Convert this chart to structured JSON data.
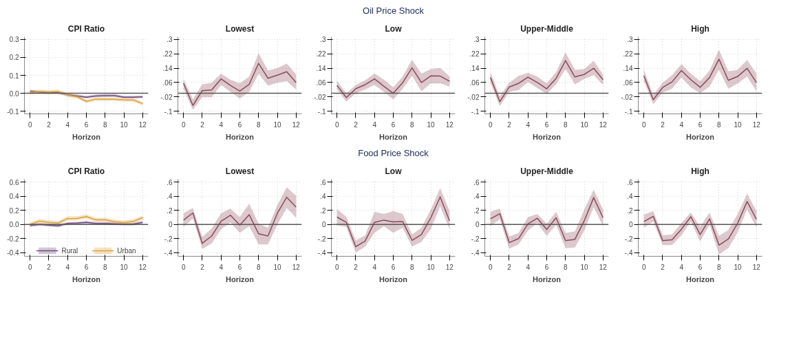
{
  "chart_data": [
    {
      "type": "line",
      "title": "CPI Ratio",
      "xlabel": "Horizon",
      "x": [
        0,
        1,
        2,
        3,
        4,
        5,
        6,
        7,
        8,
        9,
        10,
        11,
        12
      ],
      "xlim": [
        -0.6,
        12.6
      ],
      "xticks": [
        0,
        2,
        4,
        6,
        8,
        10,
        12
      ],
      "ylim": [
        -0.115,
        0.315
      ],
      "yticks": [
        {
          "value": 0.3,
          "label": "0.3"
        },
        {
          "value": 0.2,
          "label": "0.2"
        },
        {
          "value": 0.1,
          "label": "0.1"
        },
        {
          "value": 0,
          "label": "0.0"
        },
        {
          "value": -0.1,
          "label": "-0.1"
        }
      ],
      "grid": true,
      "legend": false,
      "ref_lines": [
        {
          "axis": "y",
          "value": 0,
          "color": "#555555"
        }
      ],
      "series": [
        {
          "color": "#6e4a7e",
          "values": [
            0.012,
            0.006,
            0.004,
            0.004,
            -0.008,
            -0.015,
            -0.022,
            -0.015,
            -0.013,
            -0.013,
            -0.022,
            -0.022,
            -0.02
          ],
          "lower": [
            0.004,
            -0.002,
            -0.004,
            -0.004,
            -0.016,
            -0.023,
            -0.03,
            -0.023,
            -0.021,
            -0.021,
            -0.03,
            -0.03,
            -0.028
          ],
          "upper": [
            0.02,
            0.014,
            0.012,
            0.012,
            0.0,
            -0.007,
            -0.014,
            -0.007,
            -0.005,
            -0.005,
            -0.014,
            -0.014,
            -0.012
          ]
        },
        {
          "color": "#d9a13b",
          "values": [
            0.003,
            0.01,
            0.007,
            0.01,
            -0.01,
            -0.02,
            -0.045,
            -0.033,
            -0.033,
            -0.033,
            -0.037,
            -0.037,
            -0.058
          ],
          "lower": [
            -0.007,
            0.0,
            -0.003,
            0.0,
            -0.02,
            -0.03,
            -0.055,
            -0.043,
            -0.043,
            -0.043,
            -0.047,
            -0.047,
            -0.068
          ],
          "upper": [
            0.013,
            0.02,
            0.017,
            0.02,
            0.0,
            -0.01,
            -0.035,
            -0.023,
            -0.023,
            -0.023,
            -0.027,
            -0.027,
            -0.048
          ]
        }
      ]
    },
    {
      "type": "line",
      "title": "Lowest",
      "xlabel": "Horizon",
      "x": [
        0,
        1,
        2,
        3,
        4,
        5,
        6,
        7,
        8,
        9,
        10,
        11,
        12
      ],
      "xlim": [
        -0.6,
        12.6
      ],
      "xticks": [
        0,
        2,
        4,
        6,
        8,
        10,
        12
      ],
      "ylim": [
        -0.115,
        0.315
      ],
      "yticks": [
        {
          "value": 0.3,
          "label": ".3"
        },
        {
          "value": 0.22,
          "label": ".22"
        },
        {
          "value": 0.14,
          "label": ".14"
        },
        {
          "value": 0.06,
          "label": ".06"
        },
        {
          "value": -0.02,
          "label": "-.02"
        },
        {
          "value": -0.1,
          "label": "-.1"
        }
      ],
      "grid": true,
      "ref_lines": [
        {
          "axis": "y",
          "value": 0,
          "color": "#555555"
        }
      ],
      "series": [
        {
          "color": "#8b4a5a",
          "values": [
            0.056,
            -0.068,
            0.015,
            0.018,
            0.08,
            0.044,
            0.012,
            0.05,
            0.167,
            0.084,
            0.101,
            0.12,
            0.06
          ],
          "lower": [
            0.025,
            -0.093,
            -0.021,
            -0.023,
            0.046,
            0.008,
            -0.03,
            0.008,
            0.11,
            0.042,
            0.059,
            0.067,
            0.021
          ],
          "upper": [
            0.08,
            -0.034,
            0.05,
            0.059,
            0.11,
            0.076,
            0.055,
            0.093,
            0.224,
            0.127,
            0.14,
            0.166,
            0.105
          ]
        }
      ]
    },
    {
      "type": "line",
      "subtitle": "Oil Price Shock",
      "title": "Low",
      "xlabel": "Horizon",
      "x": [
        0,
        1,
        2,
        3,
        4,
        5,
        6,
        7,
        8,
        9,
        10,
        11,
        12
      ],
      "xlim": [
        -0.6,
        12.6
      ],
      "xticks": [
        0,
        2,
        4,
        6,
        8,
        10,
        12
      ],
      "ylim": [
        -0.115,
        0.315
      ],
      "yticks": [
        {
          "value": 0.3,
          "label": ".3"
        },
        {
          "value": 0.22,
          "label": ".22"
        },
        {
          "value": 0.14,
          "label": ".14"
        },
        {
          "value": 0.06,
          "label": ".06"
        },
        {
          "value": -0.02,
          "label": "-.02"
        },
        {
          "value": -0.1,
          "label": "-.1"
        }
      ],
      "grid": true,
      "ref_lines": [
        {
          "axis": "y",
          "value": 0,
          "color": "#555555"
        }
      ],
      "series": [
        {
          "color": "#8b4a5a",
          "values": [
            0.044,
            -0.024,
            0.025,
            0.048,
            0.08,
            0.039,
            0.0,
            0.059,
            0.142,
            0.06,
            0.097,
            0.096,
            0.067
          ],
          "lower": [
            0.021,
            -0.047,
            0.0,
            0.021,
            0.046,
            0.008,
            -0.034,
            0.025,
            0.097,
            0.012,
            0.055,
            0.055,
            0.038
          ],
          "upper": [
            0.069,
            0.0,
            0.046,
            0.072,
            0.111,
            0.076,
            0.033,
            0.093,
            0.187,
            0.11,
            0.135,
            0.142,
            0.093
          ]
        }
      ]
    },
    {
      "type": "line",
      "title": "Upper-Middle",
      "xlabel": "Horizon",
      "x": [
        0,
        1,
        2,
        3,
        4,
        5,
        6,
        7,
        8,
        9,
        10,
        11,
        12
      ],
      "xlim": [
        -0.6,
        12.6
      ],
      "xticks": [
        0,
        2,
        4,
        6,
        8,
        10,
        12
      ],
      "ylim": [
        -0.115,
        0.315
      ],
      "yticks": [
        {
          "value": 0.3,
          "label": ".3"
        },
        {
          "value": 0.22,
          "label": ".22"
        },
        {
          "value": 0.14,
          "label": ".14"
        },
        {
          "value": 0.06,
          "label": ".06"
        },
        {
          "value": -0.02,
          "label": "-.02"
        },
        {
          "value": -0.1,
          "label": "-.1"
        }
      ],
      "grid": true,
      "ref_lines": [
        {
          "axis": "y",
          "value": 0,
          "color": "#555555"
        }
      ],
      "series": [
        {
          "color": "#8b4a5a",
          "values": [
            0.088,
            -0.047,
            0.035,
            0.055,
            0.09,
            0.06,
            0.025,
            0.083,
            0.182,
            0.091,
            0.105,
            0.139,
            0.076
          ],
          "lower": [
            0.059,
            -0.072,
            0.008,
            0.017,
            0.063,
            0.029,
            -0.004,
            0.05,
            0.135,
            0.05,
            0.08,
            0.101,
            0.046
          ],
          "upper": [
            0.118,
            -0.017,
            0.059,
            0.097,
            0.114,
            0.093,
            0.055,
            0.118,
            0.228,
            0.131,
            0.135,
            0.182,
            0.105
          ]
        }
      ]
    },
    {
      "type": "line",
      "title": "High",
      "xlabel": "Horizon",
      "x": [
        0,
        1,
        2,
        3,
        4,
        5,
        6,
        7,
        8,
        9,
        10,
        11,
        12
      ],
      "xlim": [
        -0.6,
        12.6
      ],
      "xticks": [
        0,
        2,
        4,
        6,
        8,
        10,
        12
      ],
      "ylim": [
        -0.115,
        0.315
      ],
      "yticks": [
        {
          "value": 0.3,
          "label": ".3"
        },
        {
          "value": 0.22,
          "label": ".22"
        },
        {
          "value": 0.14,
          "label": ".14"
        },
        {
          "value": 0.06,
          "label": ".06"
        },
        {
          "value": -0.02,
          "label": "-.02"
        },
        {
          "value": -0.1,
          "label": "-.1"
        }
      ],
      "grid": true,
      "ref_lines": [
        {
          "axis": "y",
          "value": 0,
          "color": "#555555"
        }
      ],
      "series": [
        {
          "color": "#8b4a5a",
          "values": [
            0.097,
            -0.036,
            0.032,
            0.063,
            0.127,
            0.076,
            0.033,
            0.088,
            0.19,
            0.072,
            0.094,
            0.139,
            0.06
          ],
          "lower": [
            0.067,
            -0.061,
            0.004,
            0.025,
            0.088,
            0.033,
            0.0,
            0.038,
            0.131,
            0.025,
            0.055,
            0.093,
            0.012
          ],
          "upper": [
            0.131,
            -0.009,
            0.059,
            0.101,
            0.162,
            0.11,
            0.067,
            0.127,
            0.243,
            0.122,
            0.131,
            0.186,
            0.11
          ]
        }
      ]
    },
    {
      "type": "line",
      "title": "CPI Ratio",
      "xlabel": "Horizon",
      "x": [
        0,
        1,
        2,
        3,
        4,
        5,
        6,
        7,
        8,
        9,
        10,
        11,
        12
      ],
      "xlim": [
        -0.6,
        12.6
      ],
      "xticks": [
        0,
        2,
        4,
        6,
        8,
        10,
        12
      ],
      "ylim": [
        -0.45,
        0.64
      ],
      "yticks": [
        {
          "value": 0.6,
          "label": "0.6"
        },
        {
          "value": 0.4,
          "label": "0.4"
        },
        {
          "value": 0.2,
          "label": "0.2"
        },
        {
          "value": 0,
          "label": "0.0"
        },
        {
          "value": -0.2,
          "label": "-0.2"
        },
        {
          "value": -0.4,
          "label": "-0.4"
        }
      ],
      "grid": true,
      "legend": "bottom",
      "ref_lines": [
        {
          "axis": "y",
          "value": 0,
          "color": "#555555"
        }
      ],
      "series": [
        {
          "name": "Rural",
          "color": "#6e4a7e",
          "values": [
            -0.015,
            0.0,
            -0.01,
            -0.02,
            0.015,
            0.02,
            0.03,
            0.015,
            0.015,
            0.01,
            0.005,
            0.005,
            0.03
          ],
          "lower": [
            -0.035,
            -0.02,
            -0.03,
            -0.04,
            -0.005,
            0.0,
            0.01,
            -0.005,
            -0.005,
            -0.01,
            -0.015,
            -0.015,
            0.01
          ],
          "upper": [
            0.005,
            0.02,
            0.01,
            0.0,
            0.035,
            0.04,
            0.05,
            0.035,
            0.035,
            0.03,
            0.025,
            0.025,
            0.05
          ]
        },
        {
          "name": "Urban",
          "color": "#d9a13b",
          "values": [
            0.0,
            0.047,
            0.03,
            0.02,
            0.084,
            0.086,
            0.112,
            0.065,
            0.065,
            0.04,
            0.026,
            0.043,
            0.097
          ],
          "lower": [
            -0.03,
            0.017,
            0.0,
            -0.01,
            0.054,
            0.056,
            0.082,
            0.035,
            0.035,
            0.01,
            -0.004,
            0.013,
            0.067
          ],
          "upper": [
            0.03,
            0.077,
            0.06,
            0.05,
            0.114,
            0.116,
            0.142,
            0.095,
            0.095,
            0.07,
            0.056,
            0.073,
            0.127
          ]
        }
      ]
    },
    {
      "type": "line",
      "title": "Lowest",
      "xlabel": "Horizon",
      "x": [
        0,
        1,
        2,
        3,
        4,
        5,
        6,
        7,
        8,
        9,
        10,
        11,
        12
      ],
      "xlim": [
        -0.6,
        12.6
      ],
      "xticks": [
        0,
        2,
        4,
        6,
        8,
        10,
        12
      ],
      "ylim": [
        -0.45,
        0.64
      ],
      "yticks": [
        {
          "value": 0.6,
          "label": ".6"
        },
        {
          "value": 0.4,
          "label": ".4"
        },
        {
          "value": 0.2,
          "label": ".2"
        },
        0,
        {
          "value": -0.2,
          "label": "-.2"
        },
        {
          "value": -0.4,
          "label": "-.4"
        }
      ],
      "grid": true,
      "ref_lines": [
        {
          "axis": "y",
          "value": 0,
          "color": "#555555"
        }
      ],
      "series": [
        {
          "color": "#8b4a5a",
          "values": [
            0.062,
            0.163,
            -0.267,
            -0.163,
            0.045,
            0.131,
            -0.009,
            0.138,
            -0.131,
            -0.163,
            0.159,
            0.385,
            0.245
          ],
          "lower": [
            -0.034,
            0.084,
            -0.346,
            -0.271,
            -0.067,
            0.03,
            -0.12,
            -0.024,
            -0.282,
            -0.282,
            -0.002,
            0.234,
            0.095
          ],
          "upper": [
            0.159,
            0.234,
            -0.174,
            -0.056,
            0.159,
            0.224,
            0.105,
            0.295,
            0.009,
            -0.045,
            0.277,
            0.525,
            0.406
          ]
        }
      ]
    },
    {
      "type": "line",
      "subtitle": "Food Price Shock",
      "title": "Low",
      "xlabel": "Horizon",
      "x": [
        0,
        1,
        2,
        3,
        4,
        5,
        6,
        7,
        8,
        9,
        10,
        11,
        12
      ],
      "xlim": [
        -0.6,
        12.6
      ],
      "xticks": [
        0,
        2,
        4,
        6,
        8,
        10,
        12
      ],
      "ylim": [
        -0.45,
        0.64
      ],
      "yticks": [
        {
          "value": 0.6,
          "label": ".6"
        },
        {
          "value": 0.4,
          "label": ".4"
        },
        {
          "value": 0.2,
          "label": ".2"
        },
        0,
        {
          "value": -0.2,
          "label": "-.2"
        },
        {
          "value": -0.4,
          "label": "-.4"
        }
      ],
      "grid": true,
      "ref_lines": [
        {
          "axis": "y",
          "value": 0,
          "color": "#555555"
        }
      ],
      "series": [
        {
          "color": "#8b4a5a",
          "values": [
            0.105,
            0.03,
            -0.314,
            -0.234,
            0.03,
            0.062,
            0.037,
            0.041,
            -0.224,
            -0.142,
            0.095,
            0.389,
            0.052
          ],
          "lower": [
            -0.013,
            -0.034,
            -0.4,
            -0.314,
            -0.12,
            -0.024,
            -0.12,
            -0.045,
            -0.314,
            -0.249,
            -0.067,
            0.256,
            -0.067
          ],
          "upper": [
            0.217,
            0.11,
            -0.228,
            -0.153,
            0.181,
            0.148,
            0.191,
            0.148,
            -0.142,
            -0.045,
            0.213,
            0.514,
            0.191
          ]
        }
      ]
    },
    {
      "type": "line",
      "title": "Upper-Middle",
      "xlabel": "Horizon",
      "x": [
        0,
        1,
        2,
        3,
        4,
        5,
        6,
        7,
        8,
        9,
        10,
        11,
        12
      ],
      "xlim": [
        -0.6,
        12.6
      ],
      "xticks": [
        0,
        2,
        4,
        6,
        8,
        10,
        12
      ],
      "ylim": [
        -0.45,
        0.64
      ],
      "yticks": [
        {
          "value": 0.6,
          "label": ".6"
        },
        {
          "value": 0.4,
          "label": ".4"
        },
        {
          "value": 0.2,
          "label": ".2"
        },
        0,
        {
          "value": -0.2,
          "label": "-.2"
        },
        {
          "value": -0.4,
          "label": "-.4"
        }
      ],
      "grid": true,
      "ref_lines": [
        {
          "axis": "y",
          "value": 0,
          "color": "#555555"
        }
      ],
      "series": [
        {
          "color": "#8b4a5a",
          "values": [
            0.08,
            0.153,
            -0.256,
            -0.2,
            0.009,
            0.088,
            -0.071,
            0.095,
            -0.228,
            -0.211,
            0.052,
            0.381,
            0.095
          ],
          "lower": [
            -0.024,
            0.073,
            -0.342,
            -0.282,
            -0.088,
            0.019,
            -0.163,
            -0.002,
            -0.335,
            -0.325,
            -0.088,
            0.245,
            -0.024
          ],
          "upper": [
            0.181,
            0.224,
            -0.17,
            -0.12,
            0.105,
            0.148,
            0.009,
            0.181,
            -0.12,
            -0.099,
            0.213,
            0.492,
            0.213
          ]
        }
      ]
    },
    {
      "type": "line",
      "title": "High",
      "xlabel": "Horizon",
      "x": [
        0,
        1,
        2,
        3,
        4,
        5,
        6,
        7,
        8,
        9,
        10,
        11,
        12
      ],
      "xlim": [
        -0.6,
        12.6
      ],
      "xticks": [
        0,
        2,
        4,
        6,
        8,
        10,
        12
      ],
      "ylim": [
        -0.45,
        0.64
      ],
      "yticks": [
        {
          "value": 0.6,
          "label": ".6"
        },
        {
          "value": 0.4,
          "label": ".4"
        },
        {
          "value": 0.2,
          "label": ".2"
        },
        0,
        {
          "value": -0.2,
          "label": "-.2"
        },
        {
          "value": -0.4,
          "label": "-.4"
        }
      ],
      "grid": true,
      "ref_lines": [
        {
          "axis": "y",
          "value": 0,
          "color": "#555555"
        }
      ],
      "series": [
        {
          "color": "#8b4a5a",
          "values": [
            0.041,
            0.116,
            -0.228,
            -0.217,
            -0.067,
            0.11,
            -0.142,
            0.08,
            -0.292,
            -0.206,
            0.019,
            0.325,
            0.073
          ],
          "lower": [
            -0.045,
            0.041,
            -0.292,
            -0.292,
            -0.153,
            0.041,
            -0.239,
            -0.002,
            -0.42,
            -0.335,
            -0.11,
            0.213,
            -0.045
          ],
          "upper": [
            0.138,
            0.191,
            -0.153,
            -0.142,
            0.019,
            0.17,
            -0.034,
            0.17,
            -0.163,
            -0.077,
            0.148,
            0.439,
            0.191
          ]
        }
      ]
    }
  ]
}
